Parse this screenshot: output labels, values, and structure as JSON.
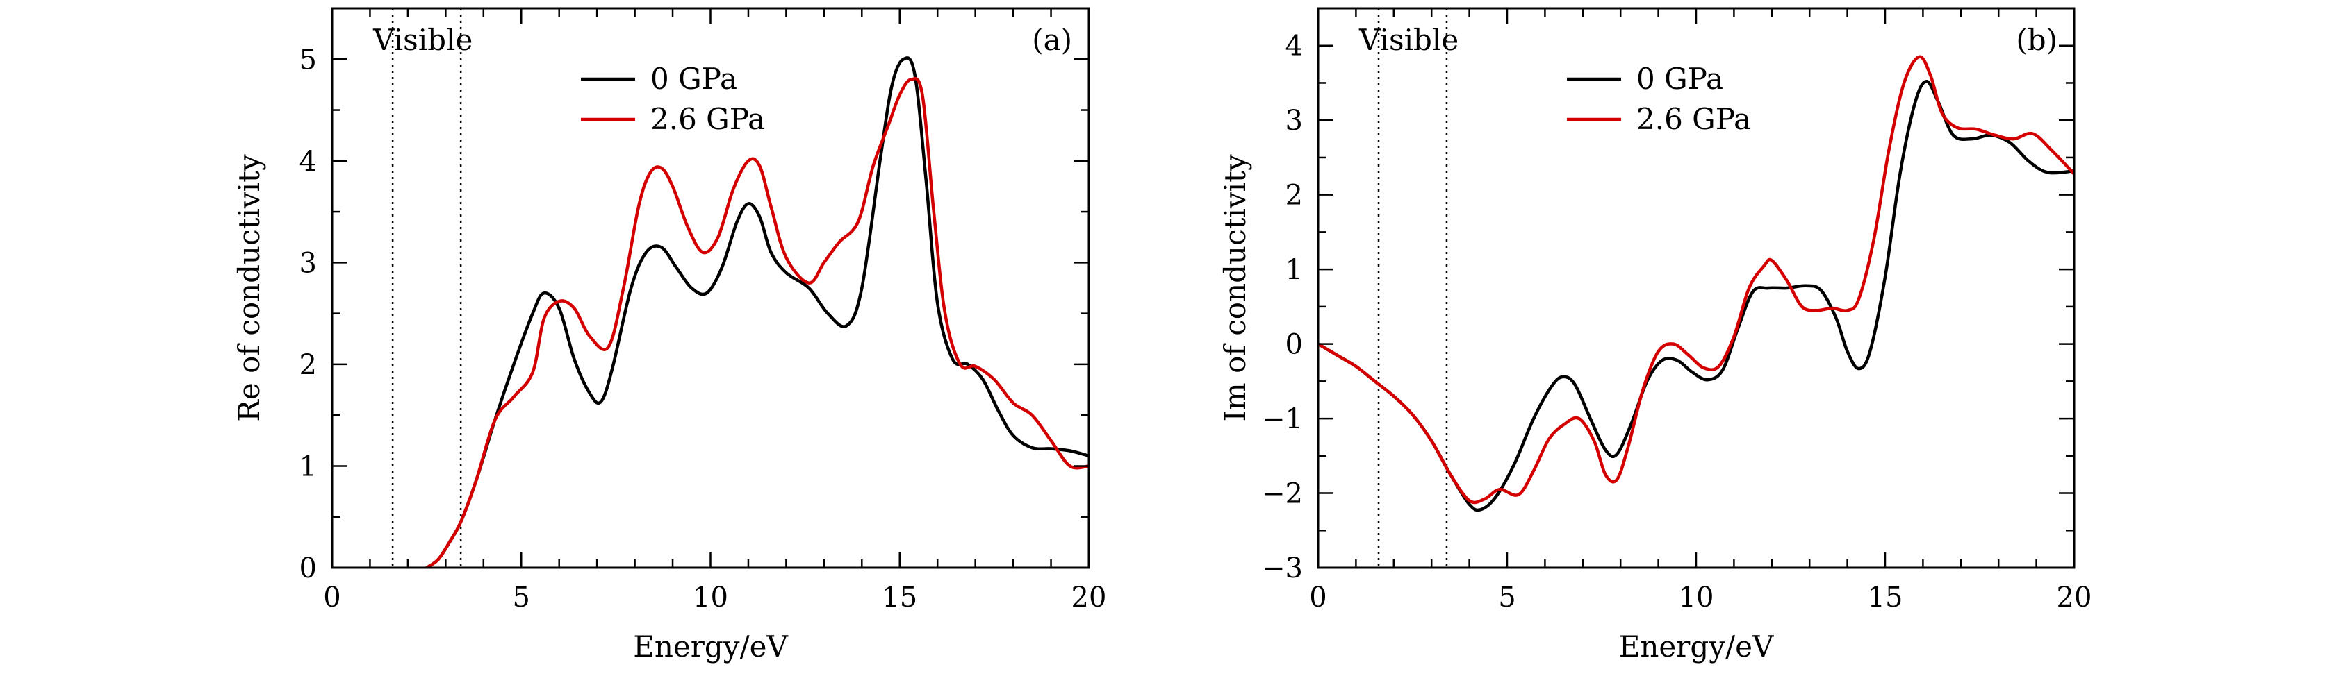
{
  "chart_data": [
    {
      "type": "line",
      "panel_label": "(a)",
      "title": "",
      "xlabel": "Energy/eV",
      "ylabel": "Re of conductivity",
      "xlim": [
        0,
        20
      ],
      "ylim": [
        0,
        5.5
      ],
      "xticks": [
        0,
        5,
        10,
        15,
        20
      ],
      "yticks": [
        0,
        1,
        2,
        3,
        4,
        5
      ],
      "grid": false,
      "legend_position": "top-center",
      "annotation": {
        "text": "Visible",
        "vlines": [
          1.6,
          3.4
        ]
      },
      "series": [
        {
          "name": "0 GPa",
          "color": "#000000",
          "x": [
            2.5,
            2.8,
            3.1,
            3.4,
            3.8,
            4.3,
            4.8,
            5.3,
            5.6,
            6.0,
            6.4,
            6.8,
            7.1,
            7.4,
            7.9,
            8.3,
            8.7,
            9.1,
            9.5,
            9.9,
            10.3,
            10.7,
            11.0,
            11.3,
            11.6,
            12.0,
            12.6,
            13.1,
            13.6,
            14.0,
            14.5,
            14.8,
            15.1,
            15.4,
            15.7,
            16.0,
            16.4,
            16.8,
            17.2,
            17.6,
            18.0,
            18.5,
            19.0,
            19.5,
            20.0
          ],
          "y": [
            0.0,
            0.08,
            0.25,
            0.45,
            0.85,
            1.45,
            2.0,
            2.5,
            2.7,
            2.55,
            2.05,
            1.72,
            1.63,
            1.95,
            2.75,
            3.1,
            3.15,
            2.95,
            2.75,
            2.7,
            2.95,
            3.4,
            3.58,
            3.45,
            3.1,
            2.9,
            2.75,
            2.5,
            2.38,
            2.75,
            4.05,
            4.75,
            5.0,
            4.85,
            3.8,
            2.6,
            2.05,
            2.0,
            1.85,
            1.55,
            1.3,
            1.18,
            1.17,
            1.15,
            1.1
          ]
        },
        {
          "name": "2.6 GPa",
          "color": "#d40000",
          "x": [
            2.5,
            2.8,
            3.1,
            3.4,
            3.8,
            4.3,
            4.8,
            5.3,
            5.6,
            6.0,
            6.4,
            6.8,
            7.3,
            7.7,
            8.1,
            8.4,
            8.7,
            9.0,
            9.4,
            9.8,
            10.2,
            10.6,
            11.0,
            11.3,
            11.6,
            12.0,
            12.6,
            13.0,
            13.4,
            13.9,
            14.3,
            14.7,
            15.0,
            15.3,
            15.6,
            15.9,
            16.2,
            16.6,
            17.0,
            17.5,
            18.0,
            18.5,
            19.0,
            19.5,
            20.0
          ],
          "y": [
            0.0,
            0.08,
            0.25,
            0.45,
            0.85,
            1.45,
            1.68,
            1.92,
            2.45,
            2.62,
            2.55,
            2.28,
            2.17,
            2.75,
            3.55,
            3.88,
            3.93,
            3.75,
            3.35,
            3.1,
            3.25,
            3.72,
            4.0,
            3.95,
            3.55,
            3.05,
            2.8,
            3.0,
            3.2,
            3.4,
            3.95,
            4.35,
            4.65,
            4.8,
            4.65,
            3.5,
            2.5,
            2.0,
            1.98,
            1.85,
            1.62,
            1.5,
            1.25,
            1.0,
            1.0
          ]
        }
      ]
    },
    {
      "type": "line",
      "panel_label": "(b)",
      "title": "",
      "xlabel": "Energy/eV",
      "ylabel": "Im of conductivity",
      "xlim": [
        0,
        20
      ],
      "ylim": [
        -3,
        4.5
      ],
      "xticks": [
        0,
        5,
        10,
        15,
        20
      ],
      "yticks": [
        -3,
        -2,
        -1,
        0,
        1,
        2,
        3,
        4
      ],
      "grid": false,
      "legend_position": "top-center",
      "annotation": {
        "text": "Visible",
        "vlines": [
          1.6,
          3.4
        ]
      },
      "series": [
        {
          "name": "0 GPa",
          "color": "#000000",
          "x": [
            0.0,
            0.5,
            1.0,
            1.5,
            2.0,
            2.5,
            3.0,
            3.5,
            4.0,
            4.3,
            4.7,
            5.2,
            5.7,
            6.2,
            6.5,
            6.8,
            7.2,
            7.6,
            7.9,
            8.3,
            8.7,
            9.1,
            9.5,
            9.9,
            10.3,
            10.7,
            11.1,
            11.5,
            11.9,
            12.4,
            12.9,
            13.3,
            13.7,
            14.0,
            14.3,
            14.6,
            15.0,
            15.4,
            15.8,
            16.1,
            16.4,
            16.8,
            17.3,
            17.8,
            18.3,
            18.8,
            19.3,
            20.0
          ],
          "y": [
            0.0,
            -0.15,
            -0.3,
            -0.5,
            -0.7,
            -0.95,
            -1.3,
            -1.75,
            -2.15,
            -2.22,
            -2.05,
            -1.6,
            -1.0,
            -0.55,
            -0.44,
            -0.55,
            -1.0,
            -1.42,
            -1.48,
            -1.05,
            -0.5,
            -0.22,
            -0.22,
            -0.38,
            -0.48,
            -0.35,
            0.2,
            0.7,
            0.75,
            0.75,
            0.78,
            0.72,
            0.35,
            -0.1,
            -0.33,
            -0.1,
            0.9,
            2.3,
            3.25,
            3.52,
            3.25,
            2.8,
            2.75,
            2.8,
            2.7,
            2.45,
            2.3,
            2.32
          ]
        },
        {
          "name": "2.6 GPa",
          "color": "#d40000",
          "x": [
            0.0,
            0.5,
            1.0,
            1.5,
            2.0,
            2.5,
            3.0,
            3.5,
            4.0,
            4.4,
            4.8,
            5.3,
            5.7,
            6.1,
            6.5,
            6.9,
            7.3,
            7.6,
            7.9,
            8.2,
            8.6,
            9.0,
            9.4,
            9.8,
            10.2,
            10.6,
            11.0,
            11.4,
            11.8,
            12.0,
            12.4,
            12.8,
            13.2,
            13.6,
            14.0,
            14.3,
            14.7,
            15.1,
            15.5,
            15.9,
            16.2,
            16.5,
            16.9,
            17.4,
            17.9,
            18.4,
            18.9,
            19.4,
            20.0
          ],
          "y": [
            0.0,
            -0.15,
            -0.3,
            -0.5,
            -0.7,
            -0.95,
            -1.3,
            -1.75,
            -2.1,
            -2.08,
            -1.95,
            -2.02,
            -1.7,
            -1.28,
            -1.08,
            -1.0,
            -1.3,
            -1.75,
            -1.82,
            -1.38,
            -0.6,
            -0.1,
            0.0,
            -0.15,
            -0.32,
            -0.3,
            0.1,
            0.75,
            1.05,
            1.12,
            0.85,
            0.5,
            0.45,
            0.48,
            0.45,
            0.6,
            1.4,
            2.6,
            3.5,
            3.85,
            3.6,
            3.1,
            2.9,
            2.88,
            2.8,
            2.75,
            2.82,
            2.6,
            2.28
          ]
        }
      ]
    }
  ]
}
